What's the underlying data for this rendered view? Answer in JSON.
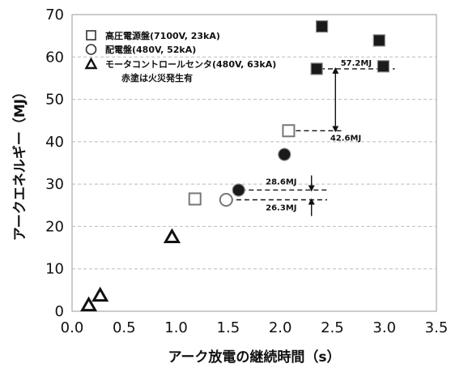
{
  "chart_data": {
    "type": "scatter",
    "xlabel": "アーク放電の継続時間（s）",
    "ylabel": "アークエネルギー（MJ）",
    "xlim": [
      0,
      3.5
    ],
    "ylim": [
      0,
      70
    ],
    "x_ticks": [
      "0.0",
      "0.5",
      "1.0",
      "1.5",
      "2.0",
      "2.5",
      "3.0",
      "3.5"
    ],
    "y_ticks": [
      "0",
      "10",
      "20",
      "30",
      "40",
      "50",
      "60",
      "70"
    ],
    "grid": "horizontal dashed",
    "legend_position": "top-left",
    "legend_note": "赤塗は火災発生有",
    "series": [
      {
        "name": "高圧電源盤(7100V, 23kA)",
        "marker": "square",
        "points": [
          {
            "x": 1.18,
            "y": 26.5,
            "filled": false
          },
          {
            "x": 2.08,
            "y": 42.6,
            "filled": false
          },
          {
            "x": 2.35,
            "y": 57.2,
            "filled": true
          },
          {
            "x": 2.4,
            "y": 67.2,
            "filled": true
          },
          {
            "x": 2.95,
            "y": 63.9,
            "filled": true
          },
          {
            "x": 2.99,
            "y": 57.8,
            "filled": true
          }
        ]
      },
      {
        "name": "配電盤(480V, 52kA)",
        "marker": "circle",
        "points": [
          {
            "x": 1.48,
            "y": 26.3,
            "filled": false
          },
          {
            "x": 1.6,
            "y": 28.6,
            "filled": true
          },
          {
            "x": 2.04,
            "y": 37.0,
            "filled": true
          }
        ]
      },
      {
        "name": "モータコントロールセンタ(480V, 63kA)",
        "marker": "triangle",
        "points": [
          {
            "x": 0.16,
            "y": 1.4,
            "filled": false
          },
          {
            "x": 0.27,
            "y": 3.7,
            "filled": false
          },
          {
            "x": 0.96,
            "y": 17.5,
            "filled": false
          }
        ]
      }
    ],
    "annotations": [
      {
        "label": "57.2MJ",
        "y": 57.2,
        "x_start": 2.38,
        "x_end": 3.1,
        "label_x": 2.58
      },
      {
        "label": "42.6MJ",
        "y": 42.6,
        "x_start": 2.15,
        "x_end": 2.6,
        "label_x": 2.48
      },
      {
        "label": "28.6MJ",
        "y": 28.6,
        "x_start": 1.62,
        "x_end": 2.45,
        "label_x": 1.86
      },
      {
        "label": "26.3MJ",
        "y": 26.3,
        "x_start": 1.5,
        "x_end": 2.45,
        "label_x": 1.86
      }
    ],
    "arrows": [
      {
        "x": 2.53,
        "from": 57.2,
        "to": 42.6
      },
      {
        "x": 2.3,
        "from": 28.6,
        "to": 26.3
      }
    ]
  }
}
